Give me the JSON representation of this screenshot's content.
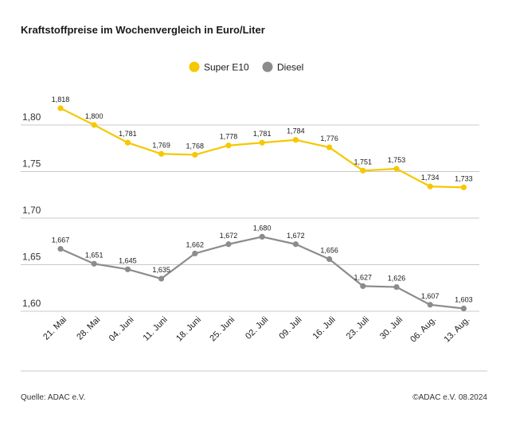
{
  "title": "Kraftstoffpreise im Wochenvergleich in Euro/Liter",
  "footer": {
    "source": "Quelle: ADAC e.V.",
    "copyright": "©ADAC e.V. 08.2024"
  },
  "chart_data": {
    "type": "line",
    "title": "Kraftstoffpreise im Wochenvergleich in Euro/Liter",
    "xlabel": "",
    "ylabel": "",
    "categories": [
      "21. Mai",
      "28. Mai",
      "04. Juni",
      "11. Juni",
      "18. Juni",
      "25. Juni",
      "02. Juli",
      "09. Juli",
      "16. Juli",
      "23. Juli",
      "30. Juli",
      "06. Aug.",
      "13. Aug."
    ],
    "ylim": [
      1.6,
      1.8
    ],
    "yticks": [
      1.6,
      1.65,
      1.7,
      1.75,
      1.8
    ],
    "ytick_labels": [
      "1,60",
      "1,65",
      "1,70",
      "1,75",
      "1,80"
    ],
    "grid": true,
    "legend_position": "top-center",
    "series": [
      {
        "name": "Super E10",
        "color": "#f5c800",
        "values": [
          1.818,
          1.8,
          1.781,
          1.769,
          1.768,
          1.778,
          1.781,
          1.784,
          1.776,
          1.751,
          1.753,
          1.734,
          1.733
        ],
        "labels": [
          "1,818",
          "1,800",
          "1,781",
          "1,769",
          "1,768",
          "1,778",
          "1,781",
          "1,784",
          "1,776",
          "1,751",
          "1,753",
          "1,734",
          "1,733"
        ]
      },
      {
        "name": "Diesel",
        "color": "#8c8c8c",
        "values": [
          1.667,
          1.651,
          1.645,
          1.635,
          1.662,
          1.672,
          1.68,
          1.672,
          1.656,
          1.627,
          1.626,
          1.607,
          1.603
        ],
        "labels": [
          "1,667",
          "1,651",
          "1,645",
          "1,635",
          "1,662",
          "1,672",
          "1,680",
          "1,672",
          "1,656",
          "1,627",
          "1,626",
          "1,607",
          "1,603"
        ]
      }
    ]
  }
}
